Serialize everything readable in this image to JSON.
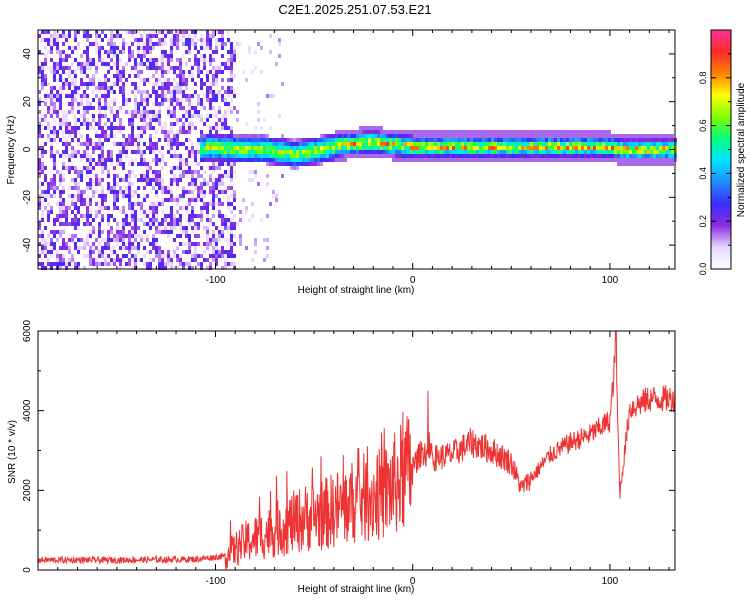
{
  "title": "C2E1.2025.251.07.53.E21",
  "chart_data": [
    {
      "type": "heatmap",
      "title": "C2E1.2025.251.07.53.E21",
      "xlabel": "Height of straight line (km)",
      "ylabel": "Frequency (Hz)",
      "xlim": [
        -190,
        133
      ],
      "ylim": [
        -50,
        50
      ],
      "x_ticks": [
        -100,
        0,
        100
      ],
      "y_ticks": [
        -40,
        -20,
        0,
        20,
        40
      ],
      "colorbar": {
        "label": "Normalized spectral amplitude",
        "range": [
          0,
          1
        ],
        "ticks": [
          "0.0",
          "0.2",
          "0.4",
          "0.6",
          "0.8"
        ],
        "colors": [
          "#ffffff",
          "#e6d8ff",
          "#8a2be2",
          "#3a2cff",
          "#1e90ff",
          "#00e5ff",
          "#00ff7f",
          "#7fff00",
          "#ffff00",
          "#ff7f00",
          "#ff2a2a",
          "#ff3399"
        ]
      },
      "noise_region_x": [
        -190,
        -90
      ],
      "signal_center_hz": [
        {
          "x": -105,
          "y": 1
        },
        {
          "x": -90,
          "y": 0
        },
        {
          "x": -75,
          "y": 0
        },
        {
          "x": -60,
          "y": -2
        },
        {
          "x": -45,
          "y": 0
        },
        {
          "x": -35,
          "y": 2
        },
        {
          "x": -20,
          "y": 3
        },
        {
          "x": -10,
          "y": 2
        },
        {
          "x": 0,
          "y": 1
        },
        {
          "x": 20,
          "y": 1
        },
        {
          "x": 40,
          "y": 1
        },
        {
          "x": 60,
          "y": 1
        },
        {
          "x": 80,
          "y": 1
        },
        {
          "x": 100,
          "y": 1
        },
        {
          "x": 105,
          "y": 0
        },
        {
          "x": 133,
          "y": 0
        }
      ]
    },
    {
      "type": "line",
      "xlabel": "Height of straight line (km)",
      "ylabel": "SNR (10 * v/v)",
      "xlim": [
        -190,
        133
      ],
      "ylim": [
        0,
        6000
      ],
      "x_ticks": [
        -100,
        0,
        100
      ],
      "y_ticks": [
        0,
        2000,
        4000,
        6000
      ],
      "color": "#ee3333",
      "series": [
        {
          "x": [
            -190,
            -150,
            -110,
            -95,
            -85,
            -75,
            -65,
            -55,
            -45,
            -35,
            -25,
            -15,
            -8,
            0,
            5,
            10,
            20,
            30,
            40,
            50,
            55,
            60,
            70,
            80,
            90,
            100,
            103,
            105,
            110,
            120,
            133
          ],
          "y": [
            250,
            250,
            270,
            350,
            700,
            900,
            1100,
            1300,
            1400,
            1600,
            1800,
            1900,
            2200,
            2600,
            3000,
            2800,
            2900,
            3200,
            3000,
            2700,
            2050,
            2300,
            2900,
            3200,
            3400,
            3750,
            5500,
            1900,
            4050,
            4300,
            4300
          ]
        }
      ]
    }
  ]
}
